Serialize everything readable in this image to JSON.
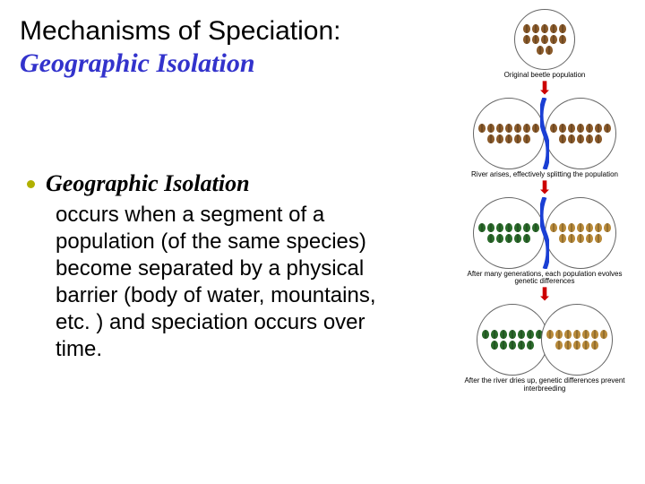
{
  "title": {
    "main": "Mechanisms of Speciation:",
    "sub": "Geographic Isolation"
  },
  "bullet": {
    "head": "Geographic Isolation",
    "body": "occurs when a segment of a population (of the same species) become separated by a physical barrier (body of water, mountains, etc. ) and speciation occurs over time."
  },
  "diagram": {
    "stage1": {
      "caption": "Original beetle population",
      "beetle_color": "#8a5a2a",
      "arrow_color": "#cc0000"
    },
    "stage2": {
      "caption": "River arises, effectively splitting the population",
      "left_color": "#8a5a2a",
      "right_color": "#8a5a2a",
      "river_color": "#1a3fd4",
      "arrow_color": "#cc0000"
    },
    "stage3": {
      "caption": "After many generations, each population evolves genetic differences",
      "left_color": "#2a6a2a",
      "right_color": "#b88a3a",
      "river_color": "#1a3fd4",
      "arrow_color": "#cc0000"
    },
    "stage4": {
      "caption": "After the river dries up, genetic differences prevent interbreeding",
      "left_color": "#2a6a2a",
      "right_color": "#b88a3a"
    }
  },
  "colors": {
    "title_sub": "#3333cc",
    "bullet_dot": "#b0b000"
  }
}
